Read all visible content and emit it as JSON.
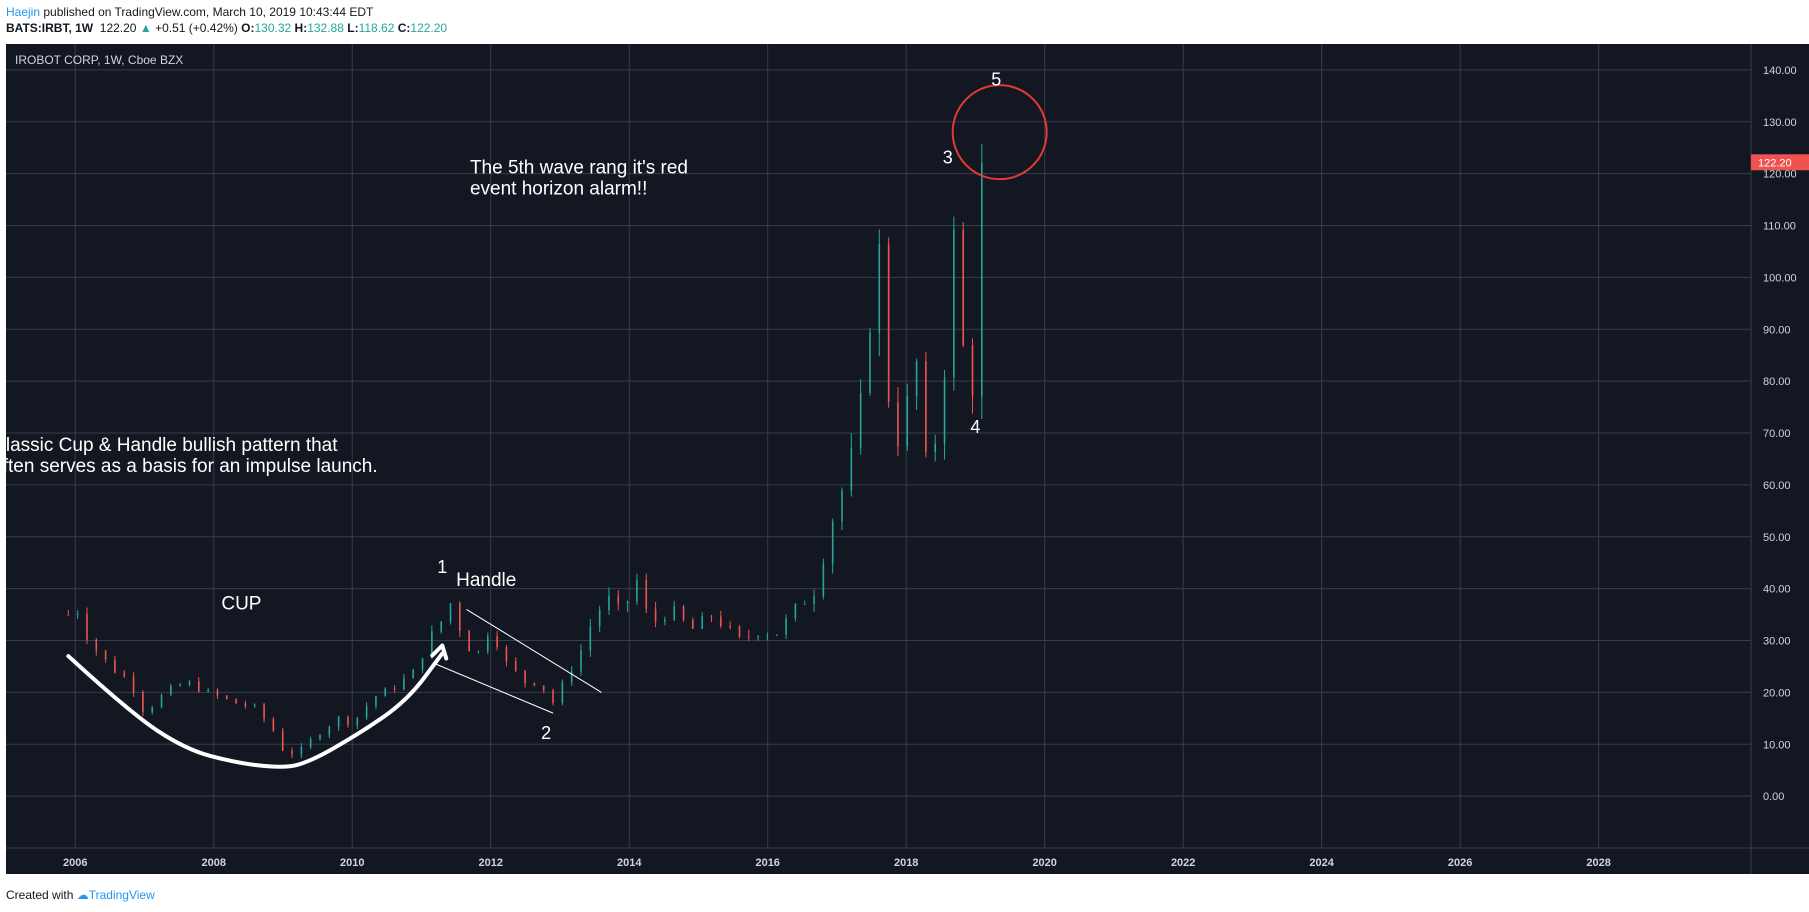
{
  "header": {
    "user": "Haejin",
    "published": "published on TradingView.com, March 10, 2019 10:43:44 EDT",
    "symbol": "BATS:IRBT, 1W",
    "last": "122.20",
    "change": "+0.51 (+0.42%)",
    "o_label": "O:",
    "o_value": "130.32",
    "h_label": "H:",
    "h_value": "132.88",
    "l_label": "L:",
    "l_value": "118.62",
    "c_label": "C:",
    "c_value": "122.20"
  },
  "footer": {
    "created": "Created with",
    "brand": "TradingView"
  },
  "colors": {
    "background": "#131722",
    "grid": "#363c4e",
    "up": "#26a69a",
    "down": "#ef5350",
    "text": "#ffffff",
    "circle": "#e53935",
    "price_tag": "#ef5350"
  },
  "chart_data": {
    "type": "candlestick",
    "title": "IROBOT CORP, 1W, Cboe BZX",
    "ylim": [
      -10,
      145
    ],
    "xlim": [
      2005.0,
      2030.2
    ],
    "y_ticks": [
      0,
      10,
      20,
      30,
      40,
      50,
      60,
      70,
      80,
      90,
      100,
      110,
      120,
      130,
      140
    ],
    "y_tick_labels": [
      "0.00",
      "10.00",
      "20.00",
      "30.00",
      "40.00",
      "50.00",
      "60.00",
      "70.00",
      "80.00",
      "90.00",
      "100.00",
      "110.00",
      "120.00",
      "130.00",
      "140.00"
    ],
    "x_ticks": [
      2006,
      2008,
      2010,
      2012,
      2014,
      2016,
      2018,
      2020,
      2022,
      2024,
      2026,
      2028
    ],
    "x_tick_labels": [
      "2006",
      "2008",
      "2010",
      "2012",
      "2014",
      "2016",
      "2018",
      "2020",
      "2022",
      "2024",
      "2026",
      "2028"
    ],
    "last_price": 122.2,
    "last_price_label": "122.20",
    "price_path": [
      [
        2005.9,
        35
      ],
      [
        2006.0,
        37
      ],
      [
        2006.2,
        30
      ],
      [
        2006.5,
        25
      ],
      [
        2006.8,
        22
      ],
      [
        2007.0,
        16
      ],
      [
        2007.3,
        20
      ],
      [
        2007.6,
        22
      ],
      [
        2007.9,
        20
      ],
      [
        2008.1,
        19
      ],
      [
        2008.3,
        18
      ],
      [
        2008.6,
        17
      ],
      [
        2008.9,
        12
      ],
      [
        2009.0,
        9
      ],
      [
        2009.2,
        8
      ],
      [
        2009.5,
        12
      ],
      [
        2009.8,
        15
      ],
      [
        2010.0,
        14
      ],
      [
        2010.3,
        19
      ],
      [
        2010.6,
        21
      ],
      [
        2010.9,
        24
      ],
      [
        2011.1,
        30
      ],
      [
        2011.3,
        34
      ],
      [
        2011.45,
        38
      ],
      [
        2011.6,
        30
      ],
      [
        2011.8,
        27
      ],
      [
        2012.0,
        33
      ],
      [
        2012.2,
        26
      ],
      [
        2012.5,
        22
      ],
      [
        2012.7,
        22
      ],
      [
        2012.9,
        18
      ],
      [
        2013.1,
        23
      ],
      [
        2013.3,
        28
      ],
      [
        2013.5,
        35
      ],
      [
        2013.7,
        38
      ],
      [
        2013.9,
        35
      ],
      [
        2014.1,
        42
      ],
      [
        2014.3,
        33
      ],
      [
        2014.6,
        36
      ],
      [
        2014.9,
        32
      ],
      [
        2015.2,
        35
      ],
      [
        2015.6,
        30
      ],
      [
        2015.9,
        32
      ],
      [
        2016.1,
        31
      ],
      [
        2016.4,
        36
      ],
      [
        2016.7,
        40
      ],
      [
        2016.9,
        52
      ],
      [
        2017.1,
        60
      ],
      [
        2017.3,
        70
      ],
      [
        2017.5,
        95
      ],
      [
        2017.6,
        108
      ],
      [
        2017.7,
        80
      ],
      [
        2017.9,
        68
      ],
      [
        2018.0,
        72
      ],
      [
        2018.1,
        95
      ],
      [
        2018.25,
        60
      ],
      [
        2018.35,
        72
      ],
      [
        2018.5,
        65
      ],
      [
        2018.65,
        115
      ],
      [
        2018.75,
        95
      ],
      [
        2018.85,
        83
      ],
      [
        2018.95,
        78
      ],
      [
        2019.05,
        92
      ],
      [
        2019.15,
        122.2
      ]
    ],
    "annotations": {
      "cup_label": "CUP",
      "handle_label": "Handle",
      "pattern_note_line1": "Classic Cup & Handle bullish pattern that",
      "pattern_note_line2": "often serves as a basis for an impulse launch.",
      "wave_note_line1": "The 5th wave rang it's red",
      "wave_note_line2": "event horizon alarm!!",
      "wave_labels": [
        "1",
        "2",
        "3",
        "4",
        "5"
      ],
      "cup_curve": [
        [
          2005.9,
          27
        ],
        [
          2006.8,
          16
        ],
        [
          2007.6,
          9
        ],
        [
          2008.3,
          6.5
        ],
        [
          2008.9,
          5.5
        ],
        [
          2009.3,
          6
        ],
        [
          2010.1,
          12
        ],
        [
          2010.8,
          18.5
        ],
        [
          2011.3,
          27.5
        ]
      ],
      "handle_upper": [
        [
          2011.65,
          36
        ],
        [
          2013.6,
          20
        ]
      ],
      "handle_lower": [
        [
          2011.2,
          25.5
        ],
        [
          2012.9,
          16
        ]
      ],
      "wave_points": [
        [
          2011.3,
          43
        ],
        [
          2012.8,
          11
        ],
        [
          2018.6,
          122
        ],
        [
          2019.0,
          70
        ],
        [
          2019.3,
          137
        ]
      ],
      "circle_center": [
        2019.35,
        128
      ],
      "pattern_note_pos": [
        2004.8,
        66.5
      ],
      "wave_note_pos": [
        2011.7,
        120
      ],
      "cup_label_pos": [
        2008.4,
        36
      ],
      "handle_label_pos": [
        2011.5,
        40.5
      ]
    }
  }
}
